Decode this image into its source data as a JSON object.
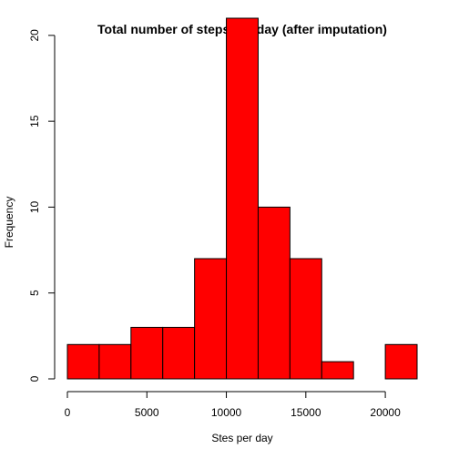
{
  "chart_data": {
    "type": "bar",
    "title": "Total number of steps per day (after imputation)",
    "xlabel": "Stes per day",
    "ylabel": "Frequency",
    "bin_edges": [
      0,
      2000,
      4000,
      6000,
      8000,
      10000,
      12000,
      14000,
      16000,
      18000,
      20000,
      22000
    ],
    "values": [
      2,
      2,
      3,
      3,
      7,
      21,
      10,
      7,
      1,
      0,
      2
    ],
    "xlim": [
      0,
      22000
    ],
    "ylim": [
      0,
      21
    ],
    "x_ticks": [
      0,
      5000,
      10000,
      15000,
      20000
    ],
    "x_tick_labels": [
      "0",
      "5000",
      "10000",
      "15000",
      "20000"
    ],
    "y_ticks": [
      0,
      5,
      10,
      15,
      20
    ],
    "y_tick_labels": [
      "0",
      "5",
      "10",
      "15",
      "20"
    ],
    "bar_color": "#ff0000",
    "bar_border_color": "#000000",
    "grid": false,
    "legend": "none"
  }
}
